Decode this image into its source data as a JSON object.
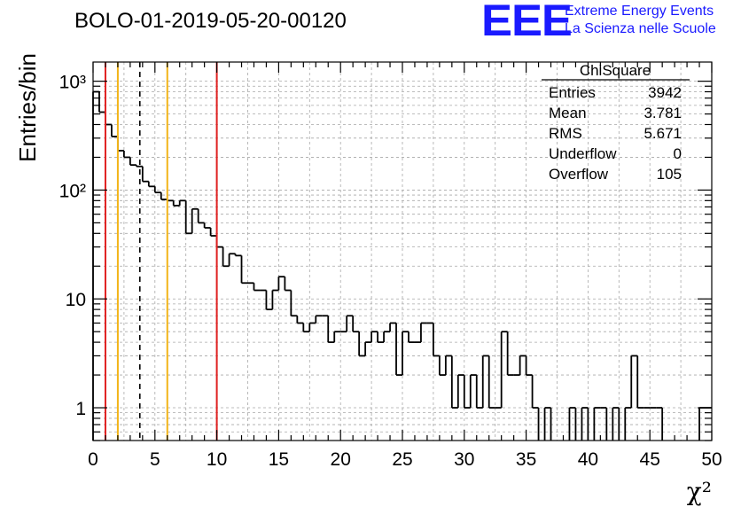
{
  "header": {
    "run_title": "BOLO-01-2019-05-20-00120",
    "logo_text": "EEE",
    "logo_line1": "Extreme Energy Events",
    "logo_line2": "La Scienza nelle Scuole",
    "logo_color": "#1a1aff"
  },
  "stats_box": {
    "title": "ChiSquare",
    "rows": [
      {
        "label": "Entries",
        "value": "3942"
      },
      {
        "label": "Mean",
        "value": "3.781"
      },
      {
        "label": "RMS",
        "value": "5.671"
      },
      {
        "label": "Underflow",
        "value": "0"
      },
      {
        "label": "Overflow",
        "value": "105"
      }
    ]
  },
  "chart_data": {
    "type": "histogram",
    "xlabel": "χ²",
    "ylabel": "Entries/bin",
    "xlim": [
      0,
      50
    ],
    "ylim": [
      0.5,
      1500
    ],
    "y_scale": "log",
    "grid": true,
    "bin_width": 0.5,
    "x_ticks": [
      0,
      5,
      10,
      15,
      20,
      25,
      30,
      35,
      40,
      45,
      50
    ],
    "x_tick_labels": [
      "0",
      "5",
      "10",
      "15",
      "20",
      "25",
      "30",
      "35",
      "40",
      "45",
      "50"
    ],
    "y_ticks": [
      1,
      10,
      100,
      1000
    ],
    "y_tick_labels": [
      "1",
      "10",
      "10²",
      "10³"
    ],
    "bins": [
      [
        0.0,
        800
      ],
      [
        0.5,
        520
      ],
      [
        1.0,
        400
      ],
      [
        1.5,
        310
      ],
      [
        2.0,
        230
      ],
      [
        2.5,
        200
      ],
      [
        3.0,
        170
      ],
      [
        3.5,
        165
      ],
      [
        4.0,
        120
      ],
      [
        4.5,
        108
      ],
      [
        5.0,
        95
      ],
      [
        5.5,
        82
      ],
      [
        6.0,
        80
      ],
      [
        6.5,
        72
      ],
      [
        7.0,
        80
      ],
      [
        7.5,
        40
      ],
      [
        8.0,
        67
      ],
      [
        8.5,
        50
      ],
      [
        9.0,
        45
      ],
      [
        9.5,
        38
      ],
      [
        10.0,
        30
      ],
      [
        10.5,
        20
      ],
      [
        11.0,
        26
      ],
      [
        11.5,
        25
      ],
      [
        12.0,
        14
      ],
      [
        12.5,
        14
      ],
      [
        13.0,
        12
      ],
      [
        13.5,
        12
      ],
      [
        14.0,
        8
      ],
      [
        14.5,
        12
      ],
      [
        15.0,
        16
      ],
      [
        15.5,
        12
      ],
      [
        16.0,
        7
      ],
      [
        16.5,
        6
      ],
      [
        17.0,
        5
      ],
      [
        17.5,
        6
      ],
      [
        18.0,
        7
      ],
      [
        18.5,
        7
      ],
      [
        19.0,
        4
      ],
      [
        19.5,
        5
      ],
      [
        20.0,
        5
      ],
      [
        20.5,
        7
      ],
      [
        21.0,
        5
      ],
      [
        21.5,
        3
      ],
      [
        22.0,
        4
      ],
      [
        22.5,
        5
      ],
      [
        23.0,
        4
      ],
      [
        23.5,
        5
      ],
      [
        24.0,
        6
      ],
      [
        24.5,
        2
      ],
      [
        25.0,
        5
      ],
      [
        25.5,
        4
      ],
      [
        26.0,
        4
      ],
      [
        26.5,
        6
      ],
      [
        27.0,
        6
      ],
      [
        27.5,
        3
      ],
      [
        28.0,
        2
      ],
      [
        28.5,
        3
      ],
      [
        29.0,
        1
      ],
      [
        29.5,
        2
      ],
      [
        30.0,
        1
      ],
      [
        30.5,
        2
      ],
      [
        31.0,
        1
      ],
      [
        31.5,
        3
      ],
      [
        32.0,
        1
      ],
      [
        32.5,
        1
      ],
      [
        33.0,
        5
      ],
      [
        33.5,
        2
      ],
      [
        34.0,
        2
      ],
      [
        34.5,
        3
      ],
      [
        35.0,
        2
      ],
      [
        35.5,
        1
      ],
      [
        36.5,
        1
      ],
      [
        38.5,
        1
      ],
      [
        39.5,
        1
      ],
      [
        40.5,
        1
      ],
      [
        41.0,
        1
      ],
      [
        42.0,
        1
      ],
      [
        43.0,
        1
      ],
      [
        43.5,
        3
      ],
      [
        44.0,
        1
      ],
      [
        44.5,
        1
      ],
      [
        45.0,
        1
      ],
      [
        45.5,
        1
      ],
      [
        49.0,
        1
      ],
      [
        49.5,
        1
      ]
    ],
    "reference_lines": [
      {
        "x": 1.0,
        "color": "#e02020",
        "style": "solid"
      },
      {
        "x": 2.0,
        "color": "#f2b418",
        "style": "solid"
      },
      {
        "x": 3.781,
        "color": "#000000",
        "style": "dashed"
      },
      {
        "x": 6.0,
        "color": "#f2b418",
        "style": "solid"
      },
      {
        "x": 10.0,
        "color": "#e02020",
        "style": "solid"
      }
    ]
  }
}
